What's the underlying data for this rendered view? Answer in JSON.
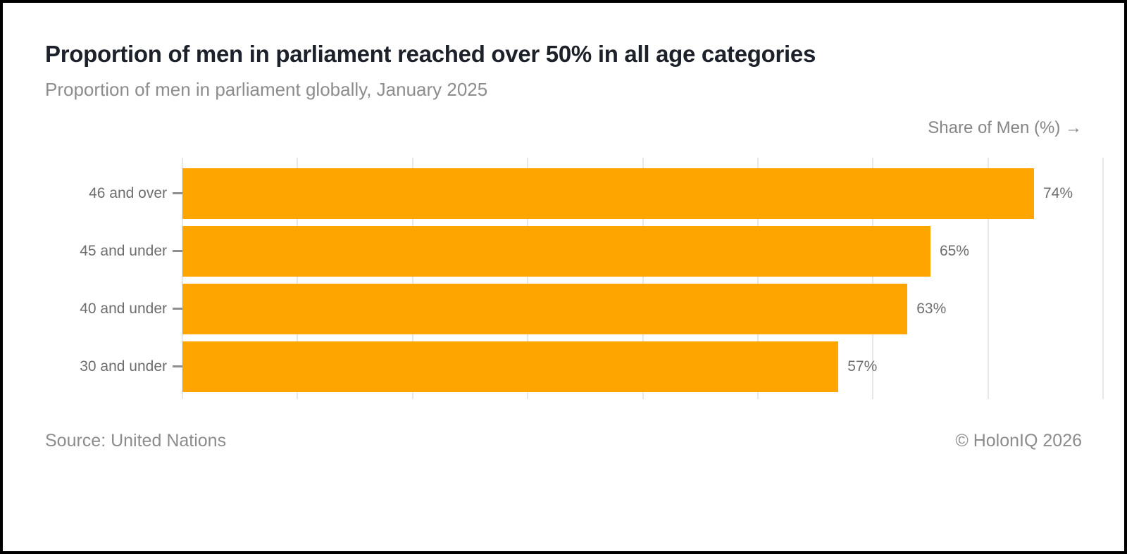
{
  "page": {
    "background_color": "#ffffff",
    "frame_color": "#000000"
  },
  "chart_data": {
    "type": "bar",
    "orientation": "horizontal",
    "title": "Proportion of men in parliament reached over 50% in all age categories",
    "subtitle": "Proportion of men in parliament globally, January 2025",
    "axis_label": "Share of Men (%) →",
    "categories": [
      "46 and over",
      "45 and under",
      "40 and under",
      "30 and under"
    ],
    "values": [
      74,
      65,
      63,
      57
    ],
    "value_labels": [
      "74%",
      "65%",
      "63%",
      "57%"
    ],
    "xlim": [
      0,
      80
    ],
    "gridline_interval": 10,
    "grid": "vertical-only",
    "legend": "none",
    "bar_color": "#FFA500",
    "gridline_color": "#e7e7e7",
    "source": "Source: United Nations",
    "copyright": "© HolonIQ 2026"
  }
}
